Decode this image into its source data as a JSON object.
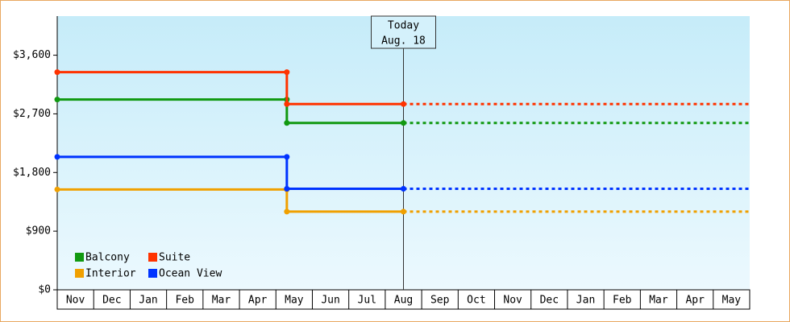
{
  "chart_data": {
    "type": "step-line",
    "categories": [
      "Nov",
      "Dec",
      "Jan",
      "Feb",
      "Mar",
      "Apr",
      "May",
      "Jun",
      "Jul",
      "Aug",
      "Sep",
      "Oct",
      "Nov",
      "Dec",
      "Jan",
      "Feb",
      "Mar",
      "Apr",
      "May"
    ],
    "x": [
      0,
      6.3,
      6.3,
      9.5
    ],
    "xlim": [
      0,
      19
    ],
    "series": [
      {
        "name": "Balcony",
        "color": "#119911",
        "values": [
          2920,
          2920,
          2560,
          2560
        ]
      },
      {
        "name": "Suite",
        "color": "#ff3300",
        "values": [
          3340,
          3340,
          2850,
          2850
        ]
      },
      {
        "name": "Interior",
        "color": "#f0a000",
        "values": [
          1540,
          1540,
          1200,
          1200
        ]
      },
      {
        "name": "Ocean View",
        "color": "#0033ff",
        "values": [
          2040,
          2040,
          1550,
          1550
        ]
      }
    ],
    "ylim": [
      0,
      4200
    ],
    "yticks": [
      {
        "value": 0,
        "label": "$0"
      },
      {
        "value": 900,
        "label": "$900"
      },
      {
        "value": 1800,
        "label": "$1,800"
      },
      {
        "value": 2700,
        "label": "$2,700"
      },
      {
        "value": 3600,
        "label": "$3,600"
      }
    ],
    "annotation": {
      "x": 9.5,
      "lines": [
        "Today",
        "Aug. 18"
      ]
    },
    "legend": "bottom-left"
  }
}
